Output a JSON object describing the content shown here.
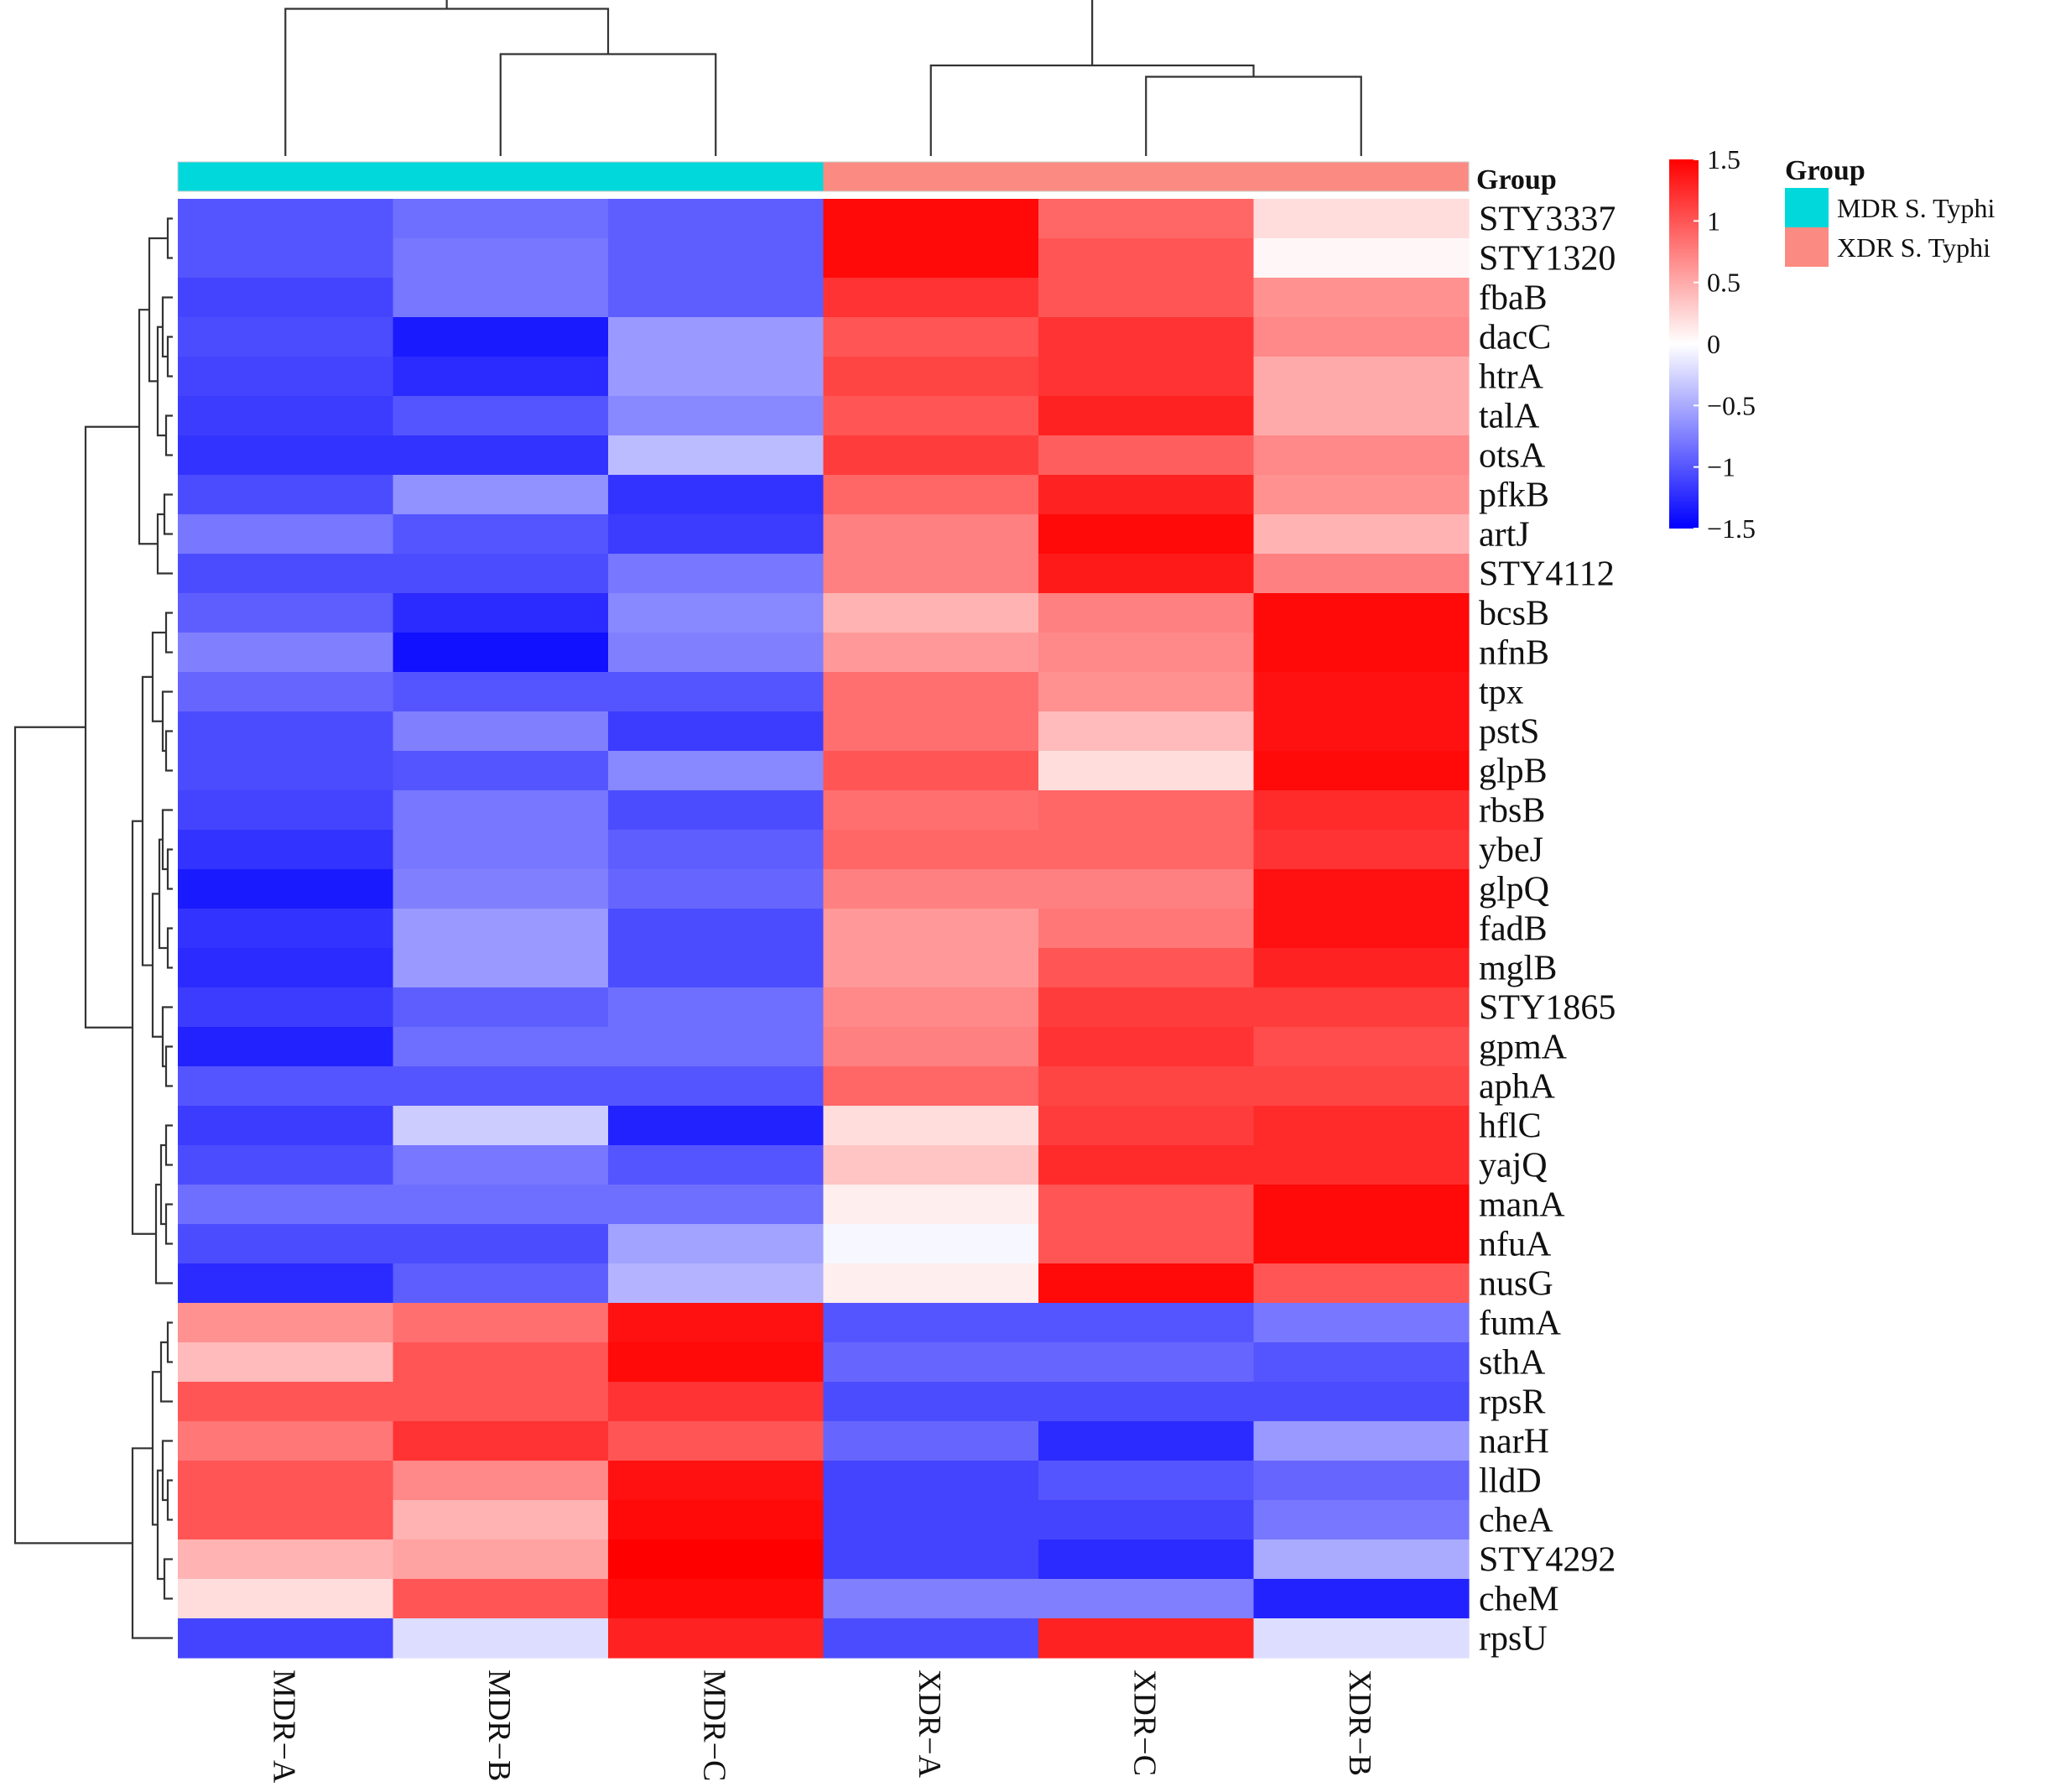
{
  "chart_data": {
    "type": "heatmap",
    "title": "",
    "columns": [
      "MDR−A",
      "MDR−B",
      "MDR−C",
      "XDR−A",
      "XDR−C",
      "XDR−B"
    ],
    "column_groups": [
      "MDR S. Typhi",
      "MDR S. Typhi",
      "MDR S. Typhi",
      "XDR S. Typhi",
      "XDR S. Typhi",
      "XDR S. Typhi"
    ],
    "rows": [
      "STY3337",
      "STY1320",
      "fbaB",
      "dacC",
      "htrA",
      "talA",
      "otsA",
      "pfkB",
      "artJ",
      "STY4112",
      "bcsB",
      "nfnB",
      "tpx",
      "pstS",
      "glpB",
      "rbsB",
      "ybeJ",
      "glpQ",
      "fadB",
      "mglB",
      "STY1865",
      "gpmA",
      "aphA",
      "hflC",
      "yajQ",
      "manA",
      "nfuA",
      "nusG",
      "fumA",
      "sthA",
      "rpsR",
      "narH",
      "lldD",
      "cheA",
      "STY4292",
      "cheM",
      "rpsU"
    ],
    "values": [
      [
        -1.0,
        -0.85,
        -0.95,
        1.45,
        0.9,
        0.2
      ],
      [
        -1.0,
        -0.8,
        -0.95,
        1.45,
        1.0,
        0.05
      ],
      [
        -1.1,
        -0.8,
        -0.95,
        1.2,
        1.0,
        0.65
      ],
      [
        -1.05,
        -1.35,
        -0.6,
        1.0,
        1.2,
        0.7
      ],
      [
        -1.1,
        -1.25,
        -0.6,
        1.1,
        1.2,
        0.5
      ],
      [
        -1.15,
        -1.0,
        -0.7,
        1.0,
        1.3,
        0.5
      ],
      [
        -1.2,
        -1.2,
        -0.4,
        1.15,
        0.95,
        0.7
      ],
      [
        -1.05,
        -0.65,
        -1.2,
        0.9,
        1.3,
        0.65
      ],
      [
        -0.8,
        -1.0,
        -1.15,
        0.75,
        1.45,
        0.45
      ],
      [
        -1.05,
        -1.05,
        -0.8,
        0.75,
        1.35,
        0.75
      ],
      [
        -0.95,
        -1.25,
        -0.7,
        0.45,
        0.75,
        1.45
      ],
      [
        -0.75,
        -1.4,
        -0.75,
        0.6,
        0.7,
        1.45
      ],
      [
        -0.9,
        -1.0,
        -1.0,
        0.85,
        0.65,
        1.4
      ],
      [
        -1.05,
        -0.75,
        -1.15,
        0.85,
        0.4,
        1.4
      ],
      [
        -1.05,
        -1.0,
        -0.7,
        1.0,
        0.2,
        1.45
      ],
      [
        -1.1,
        -0.8,
        -1.05,
        0.85,
        0.9,
        1.25
      ],
      [
        -1.2,
        -0.8,
        -0.95,
        0.9,
        0.9,
        1.2
      ],
      [
        -1.35,
        -0.75,
        -0.9,
        0.75,
        0.75,
        1.4
      ],
      [
        -1.2,
        -0.6,
        -1.05,
        0.6,
        0.8,
        1.4
      ],
      [
        -1.25,
        -0.6,
        -1.05,
        0.6,
        1.0,
        1.3
      ],
      [
        -1.15,
        -0.95,
        -0.85,
        0.7,
        1.15,
        1.15
      ],
      [
        -1.3,
        -0.85,
        -0.85,
        0.75,
        1.2,
        1.05
      ],
      [
        -1.0,
        -1.0,
        -1.0,
        0.9,
        1.1,
        1.1
      ],
      [
        -1.15,
        -0.3,
        -1.3,
        0.2,
        1.15,
        1.25
      ],
      [
        -1.05,
        -0.8,
        -1.0,
        0.35,
        1.25,
        1.25
      ],
      [
        -0.85,
        -0.85,
        -0.85,
        0.1,
        1.0,
        1.45
      ],
      [
        -1.05,
        -1.05,
        -0.55,
        -0.05,
        1.0,
        1.45
      ],
      [
        -1.25,
        -0.95,
        -0.45,
        0.1,
        1.45,
        1.0
      ],
      [
        0.65,
        0.85,
        1.4,
        -1.0,
        -1.0,
        -0.8
      ],
      [
        0.4,
        1.0,
        1.45,
        -0.9,
        -0.9,
        -1.0
      ],
      [
        1.0,
        1.0,
        1.2,
        -1.05,
        -1.05,
        -1.05
      ],
      [
        0.8,
        1.2,
        1.0,
        -0.9,
        -1.25,
        -0.6
      ],
      [
        1.0,
        0.7,
        1.4,
        -1.1,
        -1.0,
        -0.9
      ],
      [
        1.0,
        0.45,
        1.45,
        -1.1,
        -1.1,
        -0.8
      ],
      [
        0.45,
        0.55,
        1.5,
        -1.1,
        -1.25,
        -0.5
      ],
      [
        0.2,
        1.0,
        1.45,
        -0.75,
        -0.75,
        -1.3
      ],
      [
        -1.1,
        -0.2,
        1.3,
        -1.05,
        1.3,
        -0.2
      ]
    ],
    "col_dendrogram": [
      {
        "a": 1,
        "b": 2,
        "h": 0.09
      },
      {
        "a": 0,
        "b": 2,
        "h": 0.13
      },
      {
        "a": 4,
        "b": 5,
        "h": 0.07
      },
      {
        "a": 3,
        "b": 5,
        "h": 0.08
      },
      {
        "a": 1,
        "b": 4,
        "h": 0.24
      }
    ],
    "row_dendrogram_note": "hierarchical clustering of rows drawn on the left",
    "colorscale": {
      "min": -1.5,
      "max": 1.5,
      "low": "#0000ff",
      "mid": "#ffffff",
      "high": "#ff0000",
      "ticks": [
        1.5,
        1,
        0.5,
        0,
        -0.5,
        -1,
        -1.5
      ],
      "tick_labels": [
        "1.5",
        "1",
        "0.5",
        "0",
        "−0.5",
        "−1",
        "−1.5"
      ]
    },
    "annotation": {
      "label": "Group",
      "legend_title": "Group",
      "groups": [
        {
          "name": "MDR S. Typhi",
          "color": "#00d8dc"
        },
        {
          "name": "XDR S. Typhi",
          "color": "#fb8b82"
        }
      ]
    }
  }
}
